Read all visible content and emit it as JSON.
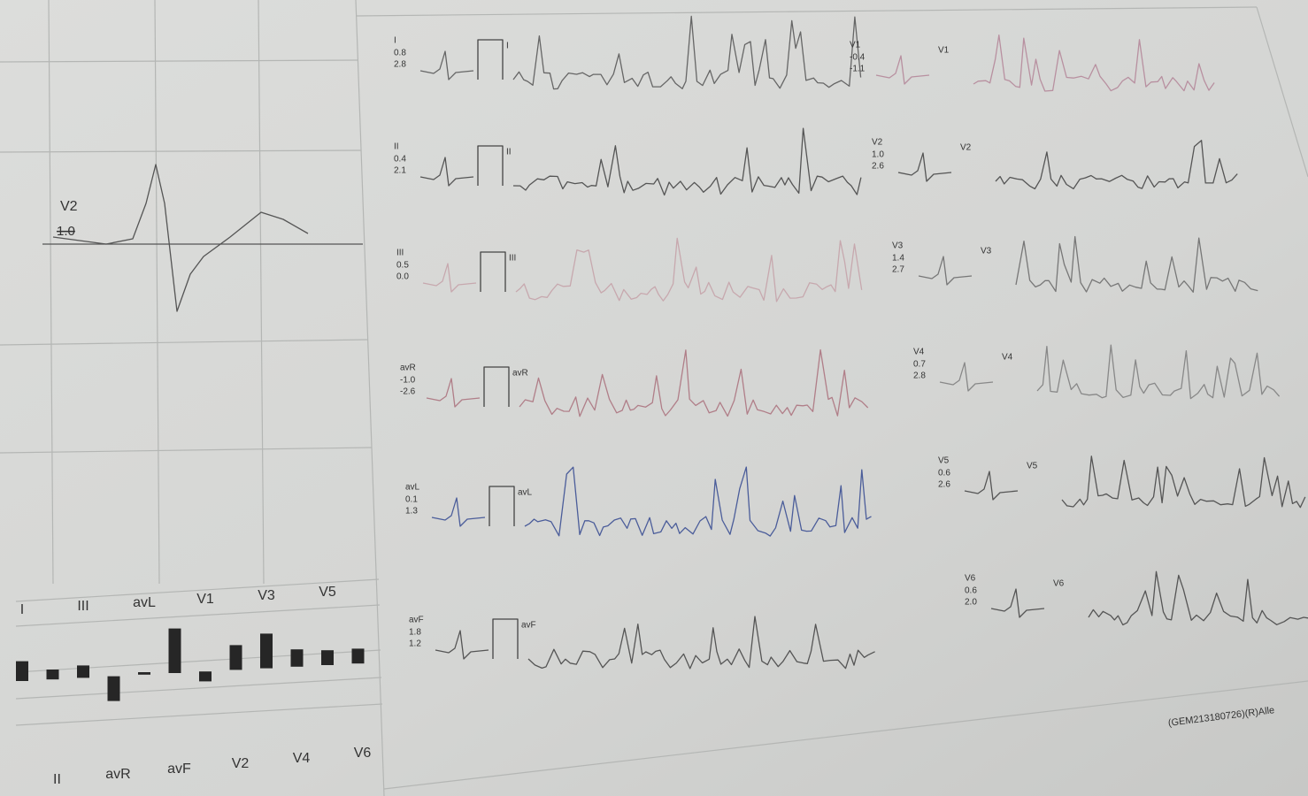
{
  "zoom": {
    "lead": "V2",
    "value": "1.0"
  },
  "leads": [
    {
      "name": "I",
      "st1": "0.8",
      "st2": "2.8"
    },
    {
      "name": "II",
      "st1": "0.4",
      "st2": "2.1"
    },
    {
      "name": "III",
      "st1": "0.5",
      "st2": "0.0"
    },
    {
      "name": "avR",
      "st1": "-1.0",
      "st2": "-2.6"
    },
    {
      "name": "avL",
      "st1": "0.1",
      "st2": "1.3"
    },
    {
      "name": "avF",
      "st1": "1.8",
      "st2": "1.2"
    },
    {
      "name": "V1",
      "st1": "-0.4",
      "st2": "-1.1"
    },
    {
      "name": "V2",
      "st1": "1.0",
      "st2": "2.6"
    },
    {
      "name": "V3",
      "st1": "1.4",
      "st2": "2.7"
    },
    {
      "name": "V4",
      "st1": "0.7",
      "st2": "2.8"
    },
    {
      "name": "V5",
      "st1": "0.6",
      "st2": "2.6"
    },
    {
      "name": "V6",
      "st1": "0.6",
      "st2": "2.0"
    }
  ],
  "footer": "(GEM213180726)(R)Alle"
}
